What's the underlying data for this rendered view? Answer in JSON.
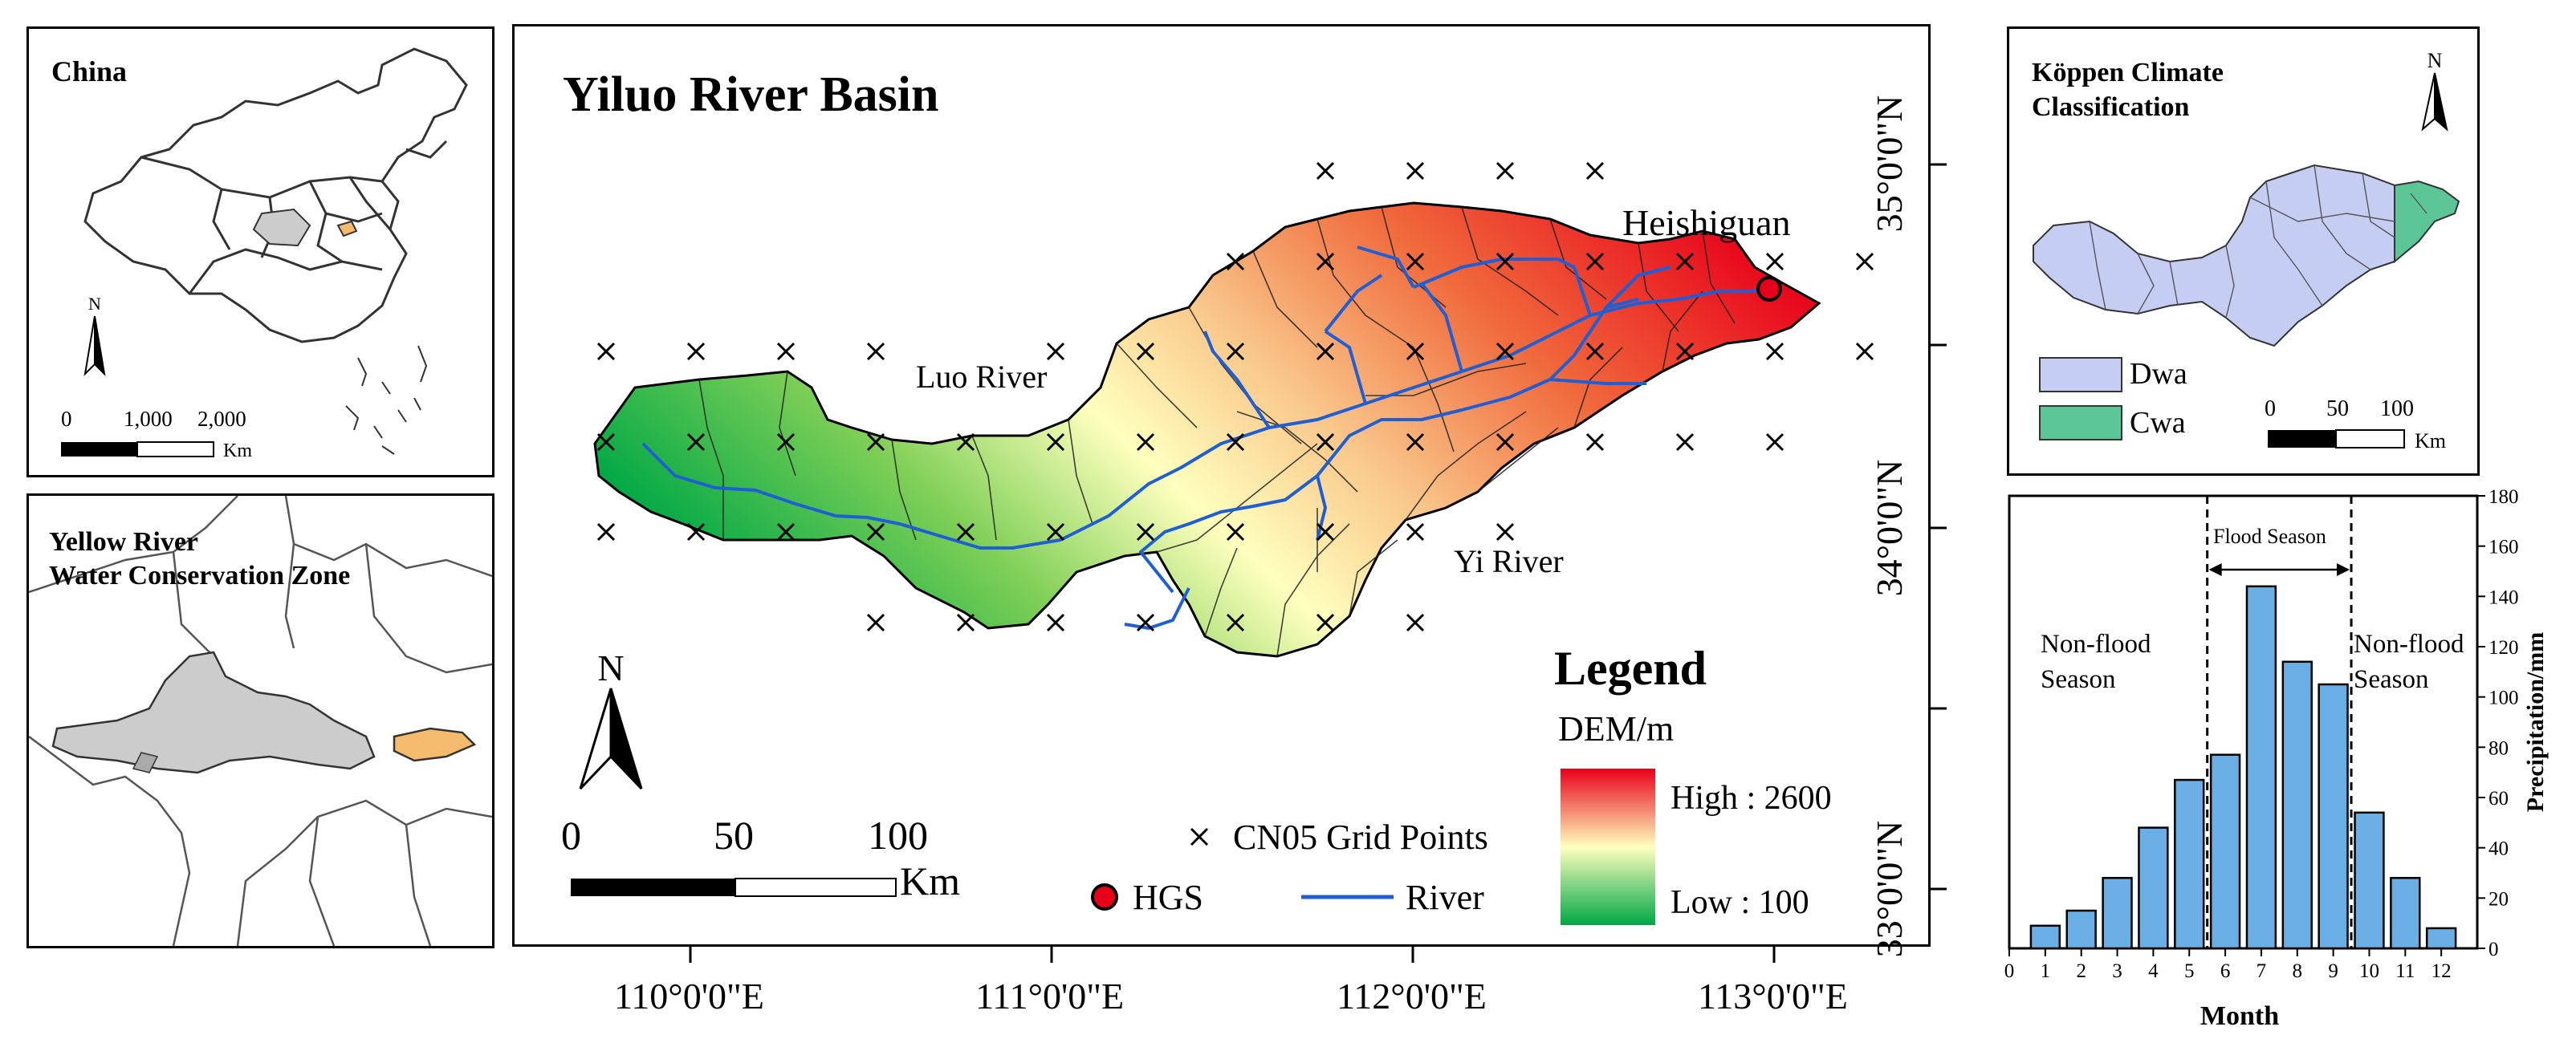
{
  "china_panel": {
    "title": "China",
    "north": "N",
    "scale_labels": [
      "0",
      "1,000",
      "2,000"
    ],
    "scale_unit": "Km"
  },
  "yellow_river_panel": {
    "title_line1": "Yellow River",
    "title_line2": "Water Conservation Zone"
  },
  "main_map": {
    "title": "Yiluo River Basin",
    "station_label": "Heishiguan",
    "river_labels": [
      "Luo River",
      "Yi River"
    ],
    "north": "N",
    "scale_labels": [
      "0",
      "50",
      "100"
    ],
    "scale_unit": "Km",
    "legend": {
      "title": "Legend",
      "dem_title": "DEM/m",
      "high_label": "High : 2600",
      "low_label": "Low : 100",
      "grid_label": "CN05 Grid Points",
      "station_label": "HGS",
      "river_label": "River"
    },
    "lon_labels": [
      "110°0'0\"E",
      "111°0'0\"E",
      "112°0'0\"E",
      "113°0'0\"E"
    ],
    "lat_labels": [
      "35°0'0\"N",
      "34°0'0\"N",
      "33°0'0\"N"
    ],
    "colors": {
      "dem_high": "#e8001a",
      "dem_mid": "#ffffbe",
      "dem_low": "#00a846",
      "river": "#1f5fd6",
      "station": "#e8001a"
    }
  },
  "koppen_panel": {
    "title_line1": "Köppen Climate",
    "title_line2": "Classification",
    "north": "N",
    "classes": [
      {
        "label": "Dwa",
        "color": "#c5cdf3"
      },
      {
        "label": "Cwa",
        "color": "#5cc596"
      }
    ],
    "scale_labels": [
      "0",
      "50",
      "100"
    ],
    "scale_unit": "Km"
  },
  "chart_data": {
    "type": "bar",
    "xlabel": "Month",
    "ylabel": "Precipitation/mm",
    "categories": [
      "1",
      "2",
      "3",
      "4",
      "5",
      "6",
      "7",
      "8",
      "9",
      "10",
      "11",
      "12"
    ],
    "x_ticks": [
      "0",
      "1",
      "2",
      "3",
      "4",
      "5",
      "6",
      "7",
      "8",
      "9",
      "10",
      "11",
      "12"
    ],
    "values": [
      9,
      15,
      28,
      48,
      67,
      77,
      144,
      114,
      105,
      54,
      28,
      8
    ],
    "ylim": [
      0,
      180
    ],
    "y_ticks": [
      "0",
      "20",
      "40",
      "60",
      "80",
      "100",
      "120",
      "140",
      "160",
      "180"
    ],
    "xlim": [
      0,
      13
    ],
    "flood_season_bounds": [
      5.5,
      9.5
    ],
    "annotations": {
      "flood": "Flood Season",
      "nonflood_left_1": "Non-flood",
      "nonflood_left_2": "Season",
      "nonflood_right_1": "Non-flood",
      "nonflood_right_2": "Season"
    },
    "bar_color": "#6aaee6"
  }
}
